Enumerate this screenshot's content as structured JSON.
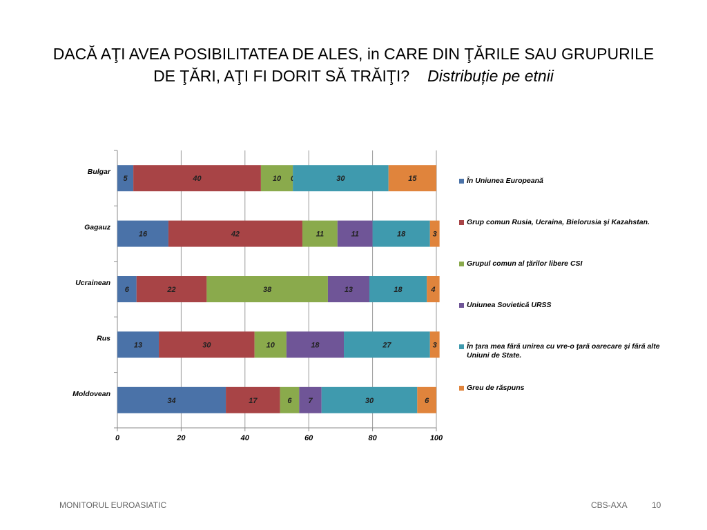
{
  "slide": {
    "title_line1": "DACĂ AŢI AVEA POSIBILITATEA DE ALES, in CARE DIN ŢĂRILE SAU GRUPURILE",
    "title_line2": "DE ŢĂRI, AŢI FI DORIT SĂ TRĂIŢI?",
    "title_italic": "Distribuție pe etnii",
    "footer_left": "MONITORUL  EUROASIATIC",
    "footer_right": "CBS-AXA",
    "page_number": "10"
  },
  "chart_data": {
    "type": "bar",
    "orientation": "horizontal",
    "stacked": true,
    "title": "",
    "xlabel": "",
    "ylabel": "",
    "xlim": [
      0,
      100
    ],
    "xticks": [
      "0",
      "20",
      "40",
      "60",
      "80",
      "100"
    ],
    "grid": true,
    "legend_position": "right",
    "categories": [
      "Bulgar",
      "Gagauz",
      "Ucrainean",
      "Rus",
      "Moldovean"
    ],
    "series": [
      {
        "name": "În Uniunea Europeană",
        "color": "#4a72a8",
        "values": [
          5,
          16,
          6,
          13,
          34
        ],
        "labels": [
          "5",
          "16",
          "6",
          "13",
          "34"
        ]
      },
      {
        "name": "Grup comun Rusia, Ucraina, Bielorusia şi Kazahstan.",
        "color": "#a84446",
        "values": [
          40,
          42,
          22,
          30,
          17
        ],
        "labels": [
          "40",
          "42",
          "22",
          "30",
          "17"
        ]
      },
      {
        "name": "Grupul comun al ţărilor libere CSI",
        "color": "#8aaa4c",
        "values": [
          10,
          11,
          38,
          10,
          6
        ],
        "labels": [
          "10",
          "11",
          "38",
          "10",
          "6"
        ]
      },
      {
        "name": "Uniunea Sovietică URSS",
        "color": "#6f5597",
        "values": [
          0,
          11,
          13,
          18,
          7
        ],
        "labels": [
          "0",
          "11",
          "13",
          "18",
          "7"
        ]
      },
      {
        "name": "În ţara mea fără unirea cu vre-o ţară oarecare şi fără  alte Uniuni de State.",
        "color": "#3f9aae",
        "values": [
          30,
          18,
          18,
          27,
          30
        ],
        "labels": [
          "30",
          "18",
          "18",
          "27",
          "30"
        ]
      },
      {
        "name": "Greu de răspuns",
        "color": "#e0843c",
        "values": [
          15,
          3,
          4,
          3,
          6
        ],
        "labels": [
          "15",
          "3",
          "4",
          "3",
          "6"
        ]
      }
    ]
  }
}
